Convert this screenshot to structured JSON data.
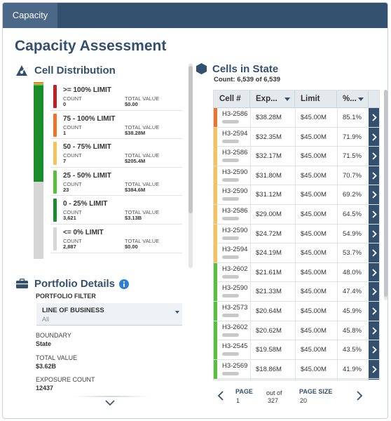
{
  "tabs": [
    {
      "label": "Capacity"
    }
  ],
  "page_title": "Capacity Assessment",
  "cell_distribution": {
    "title": "Cell Distribution",
    "count_label": "COUNT",
    "total_label": "TOTAL VALUE",
    "items": [
      {
        "label": ">= 100% LIMIT",
        "count": "0",
        "total": "$0.00",
        "color": "#c0201f",
        "count_num": 0
      },
      {
        "label": "75 - 100% LIMIT",
        "count": "1",
        "total": "$38.28M",
        "color": "#f0732a",
        "count_num": 1
      },
      {
        "label": "50 - 75% LIMIT",
        "count": "7",
        "total": "$205.4M",
        "color": "#f7c25a",
        "count_num": 7
      },
      {
        "label": "25 - 50% LIMIT",
        "count": "23",
        "total": "$384.6M",
        "color": "#56c23a",
        "count_num": 23
      },
      {
        "label": "0 - 25% LIMIT",
        "count": "3,621",
        "total": "$3.13B",
        "color": "#1b8c2c",
        "count_num": 3621
      },
      {
        "label": "<= 0% LIMIT",
        "count": "2,887",
        "total": "$0.00",
        "color": "#d6d6d6",
        "count_num": 2887
      }
    ]
  },
  "portfolio": {
    "title": "Portfolio Details",
    "filter_label": "PORTFOLIO FILTER",
    "line_of_business": {
      "label": "LINE OF BUSINESS",
      "value": "All"
    },
    "fields": [
      {
        "label": "BOUNDARY",
        "value": "State"
      },
      {
        "label": "TOTAL VALUE",
        "value": "$3.62B"
      },
      {
        "label": "EXPOSURE COUNT",
        "value": "12437"
      }
    ]
  },
  "cells": {
    "title": "Cells in State",
    "count_text": "Count: 6,539 of 6,539",
    "columns": [
      "Cell #",
      "Exp...",
      "Limit",
      "%..."
    ],
    "rows": [
      {
        "id": "H3-2586",
        "exposure": "$38.28M",
        "limit": "$45.00M",
        "pct": "85.1%",
        "color": "#f0732a"
      },
      {
        "id": "H3-2594",
        "exposure": "$32.35M",
        "limit": "$45.00M",
        "pct": "71.9%",
        "color": "#f7c25a"
      },
      {
        "id": "H3-2586",
        "exposure": "$32.17M",
        "limit": "$45.00M",
        "pct": "71.5%",
        "color": "#f7c25a"
      },
      {
        "id": "H3-2590",
        "exposure": "$31.80M",
        "limit": "$45.00M",
        "pct": "70.7%",
        "color": "#f7c25a"
      },
      {
        "id": "H3-2590",
        "exposure": "$31.12M",
        "limit": "$45.00M",
        "pct": "69.2%",
        "color": "#f7c25a"
      },
      {
        "id": "H3-2586",
        "exposure": "$29.00M",
        "limit": "$45.00M",
        "pct": "64.5%",
        "color": "#f7c25a"
      },
      {
        "id": "H3-2590",
        "exposure": "$24.72M",
        "limit": "$45.00M",
        "pct": "54.9%",
        "color": "#f7c25a"
      },
      {
        "id": "H3-2594",
        "exposure": "$24.19M",
        "limit": "$45.00M",
        "pct": "53.7%",
        "color": "#f7c25a"
      },
      {
        "id": "H3-2602",
        "exposure": "$21.61M",
        "limit": "$45.00M",
        "pct": "48.0%",
        "color": "#56c23a"
      },
      {
        "id": "H3-2590",
        "exposure": "$21.33M",
        "limit": "$45.00M",
        "pct": "47.4%",
        "color": "#56c23a"
      },
      {
        "id": "H3-2573",
        "exposure": "$20.64M",
        "limit": "$45.00M",
        "pct": "45.9%",
        "color": "#56c23a"
      },
      {
        "id": "H3-2602",
        "exposure": "$20.62M",
        "limit": "$45.00M",
        "pct": "45.8%",
        "color": "#56c23a"
      },
      {
        "id": "H3-2545",
        "exposure": "$19.58M",
        "limit": "$45.00M",
        "pct": "43.5%",
        "color": "#56c23a"
      },
      {
        "id": "H3-2569",
        "exposure": "$18.86M",
        "limit": "$45.00M",
        "pct": "41.9%",
        "color": "#56c23a"
      }
    ],
    "pager": {
      "page_label": "PAGE",
      "page": "1",
      "out_of": "out of",
      "total_pages": "327",
      "size_label": "PAGE SIZE",
      "size": "20"
    }
  },
  "colors": {
    "brand": "#34506f",
    "tab_active": "#4b6888",
    "header_bg": "#e4e9ee"
  }
}
